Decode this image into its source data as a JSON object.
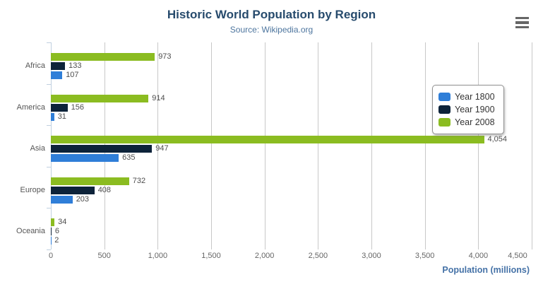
{
  "title": "Historic World Population by Region",
  "subtitle": "Source: Wikipedia.org",
  "context_menu": {
    "icon": "hamburger-icon"
  },
  "palette": {
    "title_color": "#274b6d",
    "subtitle_color": "#4d759e",
    "axis_title_color": "#4572a7",
    "gridline_color": "#c8c8c8",
    "category_axis_color": "#c0d0e0",
    "label_color": "#4d4d4d"
  },
  "chart_data": {
    "type": "bar",
    "orientation": "horizontal",
    "title": "Historic World Population by Region",
    "subtitle": "Source: Wikipedia.org",
    "categories": [
      "Africa",
      "America",
      "Asia",
      "Europe",
      "Oceania"
    ],
    "series": [
      {
        "name": "Year 1800",
        "color": "#2f7ed8",
        "values": [
          107,
          31,
          635,
          203,
          2
        ]
      },
      {
        "name": "Year 1900",
        "color": "#0d233a",
        "values": [
          133,
          156,
          947,
          408,
          6
        ]
      },
      {
        "name": "Year 2008",
        "color": "#8bbc21",
        "values": [
          973,
          914,
          4054,
          732,
          34
        ]
      }
    ],
    "series_display_order_top_to_bottom": [
      "Year 2008",
      "Year 1900",
      "Year 1800"
    ],
    "xlabel": "Population (millions)",
    "ylabel": "",
    "xlim": [
      0,
      4500
    ],
    "tick_interval": 500,
    "x_ticks": [
      "0",
      "500",
      "1,000",
      "1,500",
      "2,000",
      "2,500",
      "3,000",
      "3,500",
      "4,000",
      "4,500"
    ],
    "grid": true,
    "data_labels_visible": true,
    "legend_position": "right-middle"
  },
  "legend": {
    "items": [
      {
        "label": "Year 1800",
        "color": "#2f7ed8"
      },
      {
        "label": "Year 1900",
        "color": "#0d233a"
      },
      {
        "label": "Year 2008",
        "color": "#8bbc21"
      }
    ]
  }
}
